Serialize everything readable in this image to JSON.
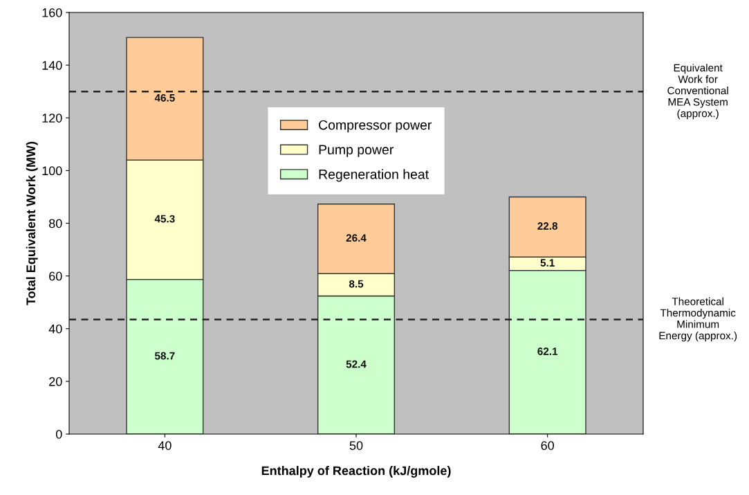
{
  "chart_data": {
    "type": "bar",
    "stacked": true,
    "xlabel": "Enthalpy of Reaction (kJ/gmole)",
    "ylabel": "Total Equivalent Work (MW)",
    "categories": [
      "40",
      "50",
      "60"
    ],
    "series": [
      {
        "name": "Regeneration heat",
        "color": "#ccffcc",
        "values": [
          58.7,
          52.4,
          62.1
        ]
      },
      {
        "name": "Pump power",
        "color": "#ffffcc",
        "values": [
          45.3,
          8.5,
          5.1
        ]
      },
      {
        "name": "Compressor power",
        "color": "#ffcc99",
        "values": [
          46.5,
          26.4,
          22.8
        ]
      }
    ],
    "ylim": [
      0,
      160
    ],
    "yticks": [
      0,
      20,
      40,
      60,
      80,
      100,
      120,
      140,
      160
    ],
    "ref_lines": [
      {
        "axis": "y",
        "value": 130,
        "label": "Equivalent\nWork for\nConventional\nMEA System\n(approx.)",
        "color": "#222222",
        "line_style": "dashed"
      },
      {
        "axis": "y",
        "value": 43.5,
        "label": "Theoretical\nThermodynamic\nMinimum\nEnergy (approx.)",
        "color": "#222222",
        "line_style": "dashed"
      }
    ],
    "data_labels": true,
    "grid": false,
    "legend": "top"
  }
}
